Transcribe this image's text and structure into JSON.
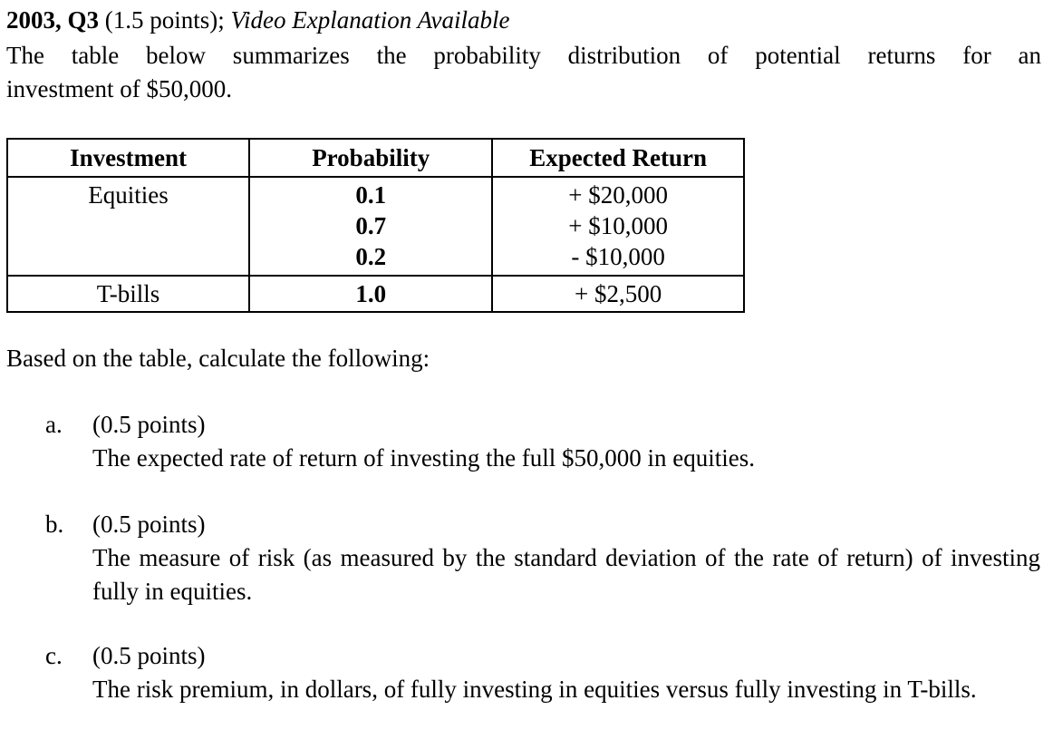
{
  "header": {
    "year_question": "2003, Q3",
    "points": " (1.5 points); ",
    "video_note": "Video Explanation Available"
  },
  "intro": {
    "line1": "The table below summarizes the probability distribution of potential returns for an",
    "line2": "investment of $50,000."
  },
  "table": {
    "headers": [
      "Investment",
      "Probability",
      "Expected Return"
    ],
    "rows": [
      {
        "investment": "Equities",
        "probabilities": [
          "0.1",
          "0.7",
          "0.2"
        ],
        "returns": [
          "+ $20,000",
          "+ $10,000",
          "- $10,000"
        ]
      },
      {
        "investment": "T-bills",
        "probabilities": [
          "1.0"
        ],
        "returns": [
          "+ $2,500"
        ]
      }
    ]
  },
  "prompt": "Based on the table, calculate the following:",
  "questions": [
    {
      "letter": "a.",
      "points": "(0.5 points)",
      "text": "The expected rate of return of investing the full $50,000 in equities."
    },
    {
      "letter": "b.",
      "points": "(0.5 points)",
      "text": "The measure of risk (as measured by the standard deviation of the rate of return) of investing fully in equities."
    },
    {
      "letter": "c.",
      "points": "(0.5 points)",
      "text": "The risk premium, in dollars, of fully investing in equities versus fully investing in T-bills."
    }
  ]
}
